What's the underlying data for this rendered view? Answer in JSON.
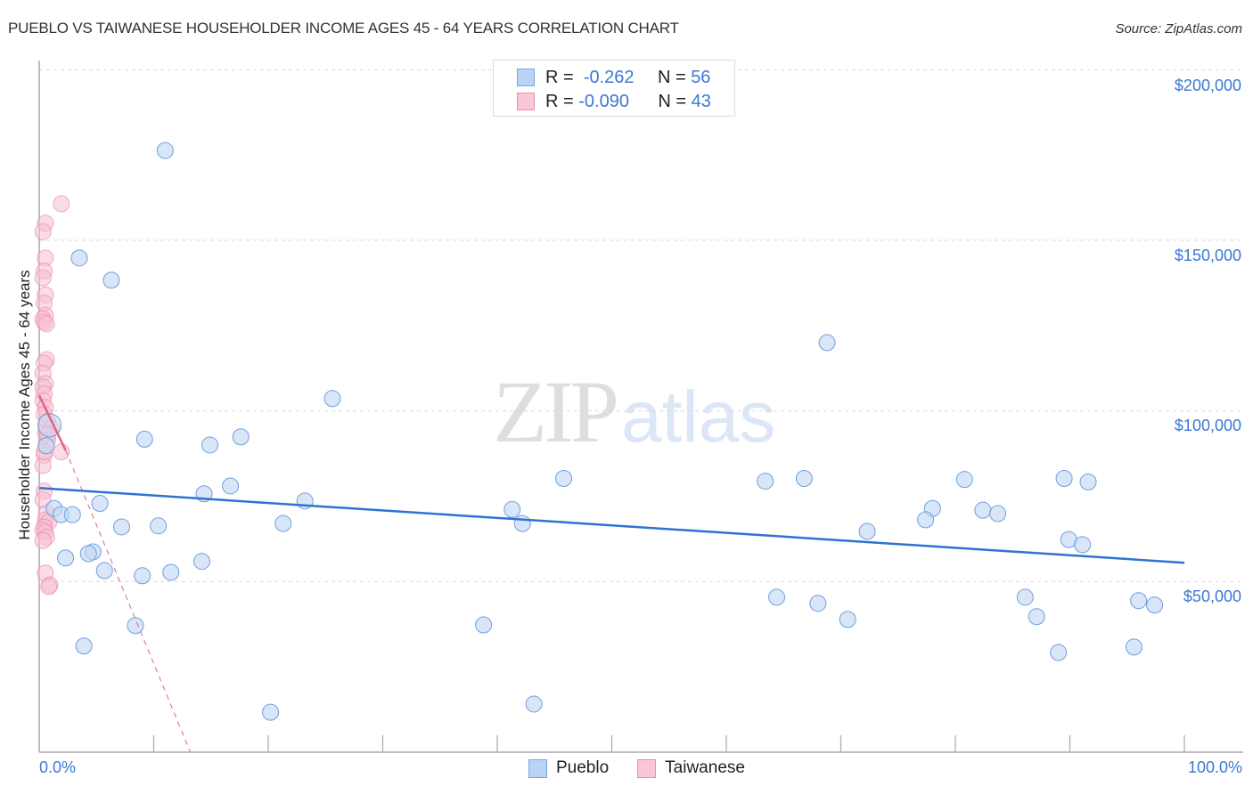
{
  "header": {
    "title": "PUEBLO VS TAIWANESE HOUSEHOLDER INCOME AGES 45 - 64 YEARS CORRELATION CHART",
    "source": "Source: ZipAtlas.com"
  },
  "watermark": {
    "zip": "ZIP",
    "atlas": "atlas"
  },
  "legend": {
    "rows": [
      {
        "series": "Pueblo",
        "r_label": "R =",
        "r_value": "-0.262",
        "n_label": "N =",
        "n_value": "56",
        "color": "#b8d3f5",
        "border": "#7aa7e0"
      },
      {
        "series": "Taiwanese",
        "r_label": "R =",
        "r_value": "-0.090",
        "n_label": "N =",
        "n_value": "43",
        "color": "#f9c6d6",
        "border": "#e891ad"
      }
    ],
    "bottom": [
      {
        "label": "Pueblo"
      },
      {
        "label": "Taiwanese"
      }
    ]
  },
  "axes": {
    "ylabel": "Householder Income Ages 45 - 64 years",
    "x_min_label": "0.0%",
    "x_max_label": "100.0%",
    "y_ticks": [
      "$200,000",
      "$150,000",
      "$100,000",
      "$50,000"
    ]
  },
  "colors": {
    "pueblo_fill": "#c3d9f5",
    "pueblo_stroke": "#6f9fde",
    "pueblo_trend": "#2f73d2",
    "taiwanese_fill": "#f7c0d1",
    "taiwanese_stroke": "#e98aaa",
    "taiwanese_trend": "#e0628a",
    "tick_label": "#3a78d4",
    "grid": "#d9d9d9"
  },
  "chart_data": {
    "type": "scatter",
    "title": "PUEBLO VS TAIWANESE HOUSEHOLDER INCOME AGES 45 - 64 YEARS CORRELATION CHART",
    "xlabel": "",
    "ylabel": "Householder Income Ages 45 - 64 years",
    "xlim": [
      0,
      100
    ],
    "ylim": [
      0,
      210000
    ],
    "x_unit": "%",
    "y_ticks": [
      50000,
      100000,
      150000,
      200000
    ],
    "grid": true,
    "legend_position": "top-center",
    "series": [
      {
        "name": "Pueblo",
        "R": -0.262,
        "N": 56,
        "trend": {
          "x": [
            0,
            100
          ],
          "y": [
            77400,
            55500
          ],
          "style": "solid"
        },
        "points": [
          [
            11.0,
            176300
          ],
          [
            3.5,
            144800
          ],
          [
            6.3,
            138300
          ],
          [
            68.8,
            120000
          ],
          [
            25.6,
            103600
          ],
          [
            9.2,
            91700
          ],
          [
            14.9,
            90000
          ],
          [
            17.6,
            92400
          ],
          [
            45.8,
            80200
          ],
          [
            63.4,
            79400
          ],
          [
            66.8,
            80200
          ],
          [
            80.8,
            79900
          ],
          [
            89.5,
            80200
          ],
          [
            91.6,
            79200
          ],
          [
            16.7,
            78000
          ],
          [
            14.4,
            75700
          ],
          [
            23.2,
            73600
          ],
          [
            5.3,
            72900
          ],
          [
            1.3,
            71400
          ],
          [
            1.9,
            69600
          ],
          [
            2.9,
            69600
          ],
          [
            41.3,
            71100
          ],
          [
            78.0,
            71400
          ],
          [
            82.4,
            70900
          ],
          [
            83.7,
            69900
          ],
          [
            77.4,
            68100
          ],
          [
            42.2,
            67000
          ],
          [
            21.3,
            67000
          ],
          [
            7.2,
            66000
          ],
          [
            10.4,
            66300
          ],
          [
            72.3,
            64700
          ],
          [
            89.9,
            62300
          ],
          [
            91.1,
            60800
          ],
          [
            4.7,
            58700
          ],
          [
            4.3,
            58200
          ],
          [
            2.3,
            56900
          ],
          [
            14.2,
            55900
          ],
          [
            5.7,
            53200
          ],
          [
            11.5,
            52700
          ],
          [
            9.0,
            51700
          ],
          [
            64.4,
            45400
          ],
          [
            86.1,
            45400
          ],
          [
            96.0,
            44400
          ],
          [
            68.0,
            43600
          ],
          [
            97.4,
            43100
          ],
          [
            87.1,
            39700
          ],
          [
            70.6,
            38900
          ],
          [
            8.4,
            37100
          ],
          [
            38.8,
            37300
          ],
          [
            3.9,
            31100
          ],
          [
            95.6,
            30800
          ],
          [
            89.0,
            29200
          ],
          [
            43.2,
            14100
          ],
          [
            20.2,
            11700
          ],
          [
            0.9,
            95800
          ],
          [
            0.6,
            89800
          ]
        ]
      },
      {
        "name": "Taiwanese",
        "R": -0.09,
        "N": 43,
        "trend": {
          "x": [
            0,
            2.3
          ],
          "y": [
            104500,
            88500
          ],
          "style": "solid",
          "extended": {
            "x": [
              2.3,
              13.2
            ],
            "y": [
              88500,
              0
            ],
            "style": "dashed"
          }
        },
        "points": [
          [
            1.7,
            160700
          ],
          [
            0.3,
            155000
          ],
          [
            0.1,
            152500
          ],
          [
            0.3,
            144800
          ],
          [
            0.2,
            141000
          ],
          [
            0.1,
            139000
          ],
          [
            0.3,
            134000
          ],
          [
            0.2,
            131600
          ],
          [
            0.3,
            128000
          ],
          [
            0.1,
            127000
          ],
          [
            0.2,
            126000
          ],
          [
            0.4,
            125500
          ],
          [
            0.4,
            115000
          ],
          [
            0.2,
            114000
          ],
          [
            0.1,
            111000
          ],
          [
            0.3,
            108000
          ],
          [
            0.1,
            107000
          ],
          [
            0.2,
            105000
          ],
          [
            0.1,
            103000
          ],
          [
            0.3,
            101000
          ],
          [
            0.2,
            99000
          ],
          [
            0.5,
            97000
          ],
          [
            0.8,
            95000
          ],
          [
            0.3,
            93500
          ],
          [
            0.5,
            91500
          ],
          [
            1.7,
            88000
          ],
          [
            0.2,
            87000
          ],
          [
            0.1,
            84000
          ],
          [
            0.2,
            76500
          ],
          [
            0.1,
            74000
          ],
          [
            0.4,
            70000
          ],
          [
            0.3,
            68000
          ],
          [
            0.6,
            67500
          ],
          [
            0.2,
            66000
          ],
          [
            0.1,
            65000
          ],
          [
            0.3,
            64500
          ],
          [
            0.4,
            63000
          ],
          [
            0.1,
            62000
          ],
          [
            0.3,
            52500
          ],
          [
            0.7,
            49000
          ],
          [
            0.6,
            48500
          ],
          [
            0.2,
            88000
          ],
          [
            0.5,
            93000
          ]
        ]
      }
    ]
  }
}
